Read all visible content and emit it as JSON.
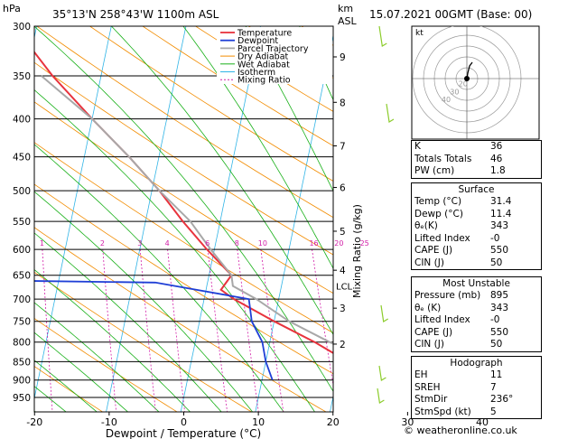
{
  "header": {
    "pressure_unit": "hPa",
    "location": "35°13'N 258°43'W 1100m ASL",
    "height_unit": "km",
    "height_ref": "ASL",
    "valid_time": "15.07.2021 00GMT (Base: 00)"
  },
  "chart_data": {
    "type": "skew-t",
    "xlabel": "Dewpoint / Temperature (°C)",
    "right_axis_label": "Mixing Ratio (g/kg)",
    "pressure_levels": [
      300,
      350,
      400,
      450,
      500,
      550,
      600,
      650,
      700,
      750,
      800,
      850,
      900,
      950
    ],
    "temperature_ticks": [
      -40,
      -30,
      -20,
      -10,
      0,
      10,
      20,
      30,
      40
    ],
    "height_ticks_km": [
      {
        "p": 330,
        "label": "9"
      },
      {
        "p": 380,
        "label": "8"
      },
      {
        "p": 435,
        "label": "7"
      },
      {
        "p": 495,
        "label": "6"
      },
      {
        "p": 567,
        "label": "5"
      },
      {
        "p": 640,
        "label": "4"
      },
      {
        "p": 720,
        "label": "3"
      },
      {
        "p": 805,
        "label": "2"
      }
    ],
    "lcl_label": "LCL",
    "lcl_pressure": 672,
    "mixing_ratio_labels": [
      "1",
      "2",
      "3",
      "4",
      "6",
      "8",
      "10",
      "16",
      "20",
      "25"
    ],
    "mixing_ratios": [
      1,
      2,
      3,
      4,
      6,
      8,
      10,
      16,
      20,
      25
    ],
    "legend": [
      "Temperature",
      "Dewpoint",
      "Parcel Trajectory",
      "Dry Adiabat",
      "Wet Adiabat",
      "Isotherm",
      "Mixing Ratio"
    ],
    "series": [
      {
        "name": "Temperature",
        "color": "#e8333d",
        "points": [
          [
            300,
            -33
          ],
          [
            350,
            -26.5
          ],
          [
            400,
            -20
          ],
          [
            450,
            -14
          ],
          [
            500,
            -9
          ],
          [
            550,
            -5
          ],
          [
            600,
            -1
          ],
          [
            650,
            3
          ],
          [
            680,
            2
          ],
          [
            700,
            4
          ],
          [
            750,
            10
          ],
          [
            800,
            16
          ],
          [
            850,
            21
          ],
          [
            880,
            25
          ],
          [
            900,
            31.4
          ]
        ]
      },
      {
        "name": "Dewpoint",
        "color": "#1f3fd6",
        "points": [
          [
            300,
            -45
          ],
          [
            330,
            -53
          ],
          [
            345,
            -36
          ],
          [
            370,
            -53
          ],
          [
            400,
            -58
          ],
          [
            420,
            -64
          ],
          [
            450,
            -64
          ],
          [
            500,
            -46
          ],
          [
            530,
            -28
          ],
          [
            550,
            -27
          ],
          [
            570,
            -34
          ],
          [
            600,
            -38
          ],
          [
            630,
            -47
          ],
          [
            660,
            -32
          ],
          [
            665,
            -7
          ],
          [
            700,
            6
          ],
          [
            750,
            7
          ],
          [
            800,
            9
          ],
          [
            850,
            10
          ],
          [
            900,
            11.4
          ]
        ]
      },
      {
        "name": "Parcel Trajectory",
        "color": "#a8a8a8",
        "points": [
          [
            350,
            -28
          ],
          [
            400,
            -20
          ],
          [
            450,
            -14
          ],
          [
            500,
            -9
          ],
          [
            550,
            -4
          ],
          [
            600,
            -0.5
          ],
          [
            650,
            3
          ],
          [
            672,
            3.5
          ],
          [
            700,
            7
          ],
          [
            750,
            12
          ],
          [
            800,
            18
          ],
          [
            850,
            24
          ],
          [
            900,
            31.4
          ]
        ]
      }
    ],
    "colors": {
      "isotherm": "#30b4e6",
      "dry_adiabat": "#f28c00",
      "wet_adiabat": "#18b018",
      "mixing_ratio": "#d21ea8",
      "wind_barb": "#8ccc2c"
    }
  },
  "hodograph": {
    "unit_label": "kt",
    "ring_labels": [
      "40",
      "30",
      "20"
    ]
  },
  "indices": [
    {
      "label": "K",
      "value": "36"
    },
    {
      "label": "Totals Totals",
      "value": "46"
    },
    {
      "label": "PW (cm)",
      "value": "1.8"
    }
  ],
  "surface": {
    "title": "Surface",
    "rows": [
      {
        "label": "Temp (°C)",
        "value": "31.4"
      },
      {
        "label": "Dewp (°C)",
        "value": "11.4"
      },
      {
        "label": "θₑ(K)",
        "value": "343"
      },
      {
        "label": "Lifted Index",
        "value": "-0"
      },
      {
        "label": "CAPE (J)",
        "value": "550"
      },
      {
        "label": "CIN (J)",
        "value": "50"
      }
    ]
  },
  "most_unstable": {
    "title": "Most Unstable",
    "rows": [
      {
        "label": "Pressure (mb)",
        "value": "895"
      },
      {
        "label": "θₑ (K)",
        "value": "343"
      },
      {
        "label": "Lifted Index",
        "value": "-0"
      },
      {
        "label": "CAPE (J)",
        "value": "550"
      },
      {
        "label": "CIN (J)",
        "value": "50"
      }
    ]
  },
  "hodo_stats": {
    "title": "Hodograph",
    "rows": [
      {
        "label": "EH",
        "value": "11"
      },
      {
        "label": "SREH",
        "value": "7"
      },
      {
        "label": "StmDir",
        "value": "236°"
      },
      {
        "label": "StmSpd (kt)",
        "value": "5"
      }
    ]
  },
  "credit": "© weatheronline.co.uk"
}
